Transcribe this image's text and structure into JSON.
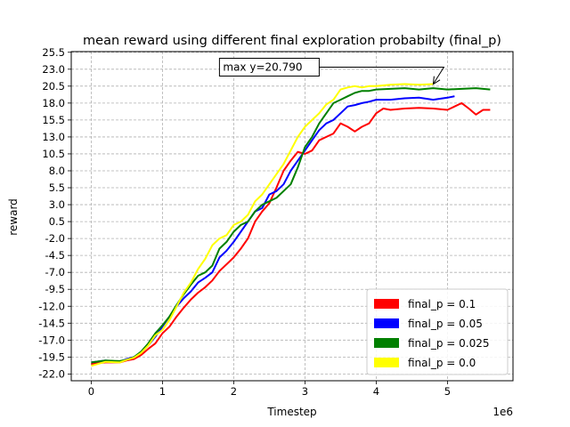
{
  "chart_data": {
    "type": "line",
    "title": "mean reward using different final exploration probabilty (final_p)",
    "xlabel": "Timestep",
    "ylabel": "reward",
    "x_offset_label": "1e6",
    "xlim": [
      -0.28,
      5.92
    ],
    "ylim": [
      -23.0,
      25.6
    ],
    "xticks": [
      0,
      1,
      2,
      3,
      4,
      5
    ],
    "xtick_labels": [
      "0",
      "1",
      "2",
      "3",
      "4",
      "5"
    ],
    "yticks": [
      -22.0,
      -19.5,
      -17.0,
      -14.5,
      -12.0,
      -9.5,
      -7.0,
      -4.5,
      -2.0,
      0.5,
      3.0,
      5.5,
      8.0,
      10.5,
      13.0,
      15.5,
      18.0,
      20.5,
      23.0,
      25.5
    ],
    "ytick_labels": [
      "-22.0",
      "-19.5",
      "-17.0",
      "-14.5",
      "-12.0",
      "-9.5",
      "-7.0",
      "-4.5",
      "-2.0",
      "0.5",
      "3.0",
      "5.5",
      "8.0",
      "10.5",
      "13.0",
      "15.5",
      "18.0",
      "20.5",
      "23.0",
      "25.5"
    ],
    "grid": true,
    "legend_position": "lower-right",
    "annotation": {
      "text": "max y=20.790",
      "text_xy": [
        1.8,
        23.3
      ],
      "point_xy": [
        4.8,
        20.79
      ]
    },
    "series": [
      {
        "name": "final_p = 0.1",
        "color": "#ff0000",
        "x": [
          0.0,
          0.2,
          0.4,
          0.5,
          0.6,
          0.7,
          0.8,
          0.9,
          1.0,
          1.1,
          1.2,
          1.3,
          1.4,
          1.5,
          1.6,
          1.7,
          1.8,
          1.9,
          2.0,
          2.1,
          2.2,
          2.3,
          2.4,
          2.5,
          2.6,
          2.7,
          2.8,
          2.9,
          3.0,
          3.1,
          3.2,
          3.3,
          3.4,
          3.5,
          3.6,
          3.7,
          3.8,
          3.9,
          4.0,
          4.1,
          4.2,
          4.4,
          4.6,
          4.8,
          5.0,
          5.1,
          5.2,
          5.3,
          5.4,
          5.5,
          5.6
        ],
        "y": [
          -20.5,
          -20.3,
          -20.3,
          -20.0,
          -19.8,
          -19.2,
          -18.3,
          -17.5,
          -16.0,
          -15.0,
          -13.5,
          -12.2,
          -11.0,
          -10.0,
          -9.2,
          -8.2,
          -6.8,
          -5.8,
          -4.8,
          -3.5,
          -2.0,
          0.5,
          2.0,
          3.2,
          5.5,
          8.0,
          9.5,
          10.8,
          10.5,
          11.0,
          12.5,
          13.0,
          13.5,
          15.0,
          14.5,
          13.8,
          14.5,
          15.0,
          16.5,
          17.2,
          17.0,
          17.2,
          17.3,
          17.2,
          17.0,
          17.5,
          18.0,
          17.2,
          16.3,
          17.0,
          17.0
        ]
      },
      {
        "name": "final_p = 0.05",
        "color": "#0000ff",
        "x": [
          0.0,
          0.2,
          0.4,
          0.5,
          0.6,
          0.7,
          0.8,
          0.9,
          1.0,
          1.1,
          1.2,
          1.3,
          1.4,
          1.5,
          1.6,
          1.7,
          1.8,
          1.9,
          2.0,
          2.1,
          2.2,
          2.3,
          2.4,
          2.5,
          2.6,
          2.7,
          2.8,
          2.9,
          3.0,
          3.1,
          3.2,
          3.3,
          3.4,
          3.5,
          3.6,
          3.7,
          3.8,
          3.9,
          4.0,
          4.2,
          4.4,
          4.6,
          4.8,
          5.0,
          5.1
        ],
        "y": [
          -20.3,
          -20.0,
          -20.2,
          -19.8,
          -19.5,
          -18.8,
          -17.8,
          -16.5,
          -15.0,
          -13.5,
          -12.0,
          -10.8,
          -9.8,
          -8.5,
          -7.8,
          -7.0,
          -4.8,
          -3.8,
          -2.5,
          -1.0,
          0.5,
          2.0,
          2.5,
          4.5,
          5.0,
          6.0,
          8.0,
          9.5,
          11.0,
          12.5,
          14.0,
          15.0,
          15.5,
          16.5,
          17.5,
          17.7,
          18.0,
          18.2,
          18.5,
          18.5,
          18.7,
          18.8,
          18.5,
          18.8,
          19.0
        ]
      },
      {
        "name": "final_p = 0.025",
        "color": "#008000",
        "x": [
          0.0,
          0.2,
          0.4,
          0.5,
          0.6,
          0.7,
          0.8,
          0.9,
          1.0,
          1.1,
          1.2,
          1.3,
          1.4,
          1.5,
          1.6,
          1.7,
          1.8,
          1.9,
          2.0,
          2.1,
          2.2,
          2.3,
          2.4,
          2.5,
          2.6,
          2.7,
          2.8,
          2.9,
          3.0,
          3.1,
          3.2,
          3.3,
          3.4,
          3.5,
          3.6,
          3.7,
          3.8,
          3.9,
          4.0,
          4.2,
          4.4,
          4.6,
          4.8,
          5.0,
          5.2,
          5.4,
          5.6
        ],
        "y": [
          -20.3,
          -20.0,
          -20.1,
          -19.9,
          -19.5,
          -18.7,
          -17.5,
          -16.0,
          -14.8,
          -13.5,
          -11.8,
          -10.2,
          -8.8,
          -7.5,
          -7.0,
          -6.0,
          -3.5,
          -2.5,
          -1.0,
          0.0,
          0.5,
          2.0,
          3.0,
          3.5,
          4.0,
          5.0,
          6.0,
          8.5,
          11.5,
          13.0,
          15.0,
          16.5,
          18.0,
          18.5,
          19.0,
          19.5,
          19.8,
          19.8,
          20.0,
          20.1,
          20.2,
          20.0,
          20.2,
          20.0,
          20.1,
          20.2,
          20.0
        ]
      },
      {
        "name": "final_p = 0.0",
        "color": "#ffff00",
        "x": [
          0.0,
          0.2,
          0.4,
          0.5,
          0.6,
          0.7,
          0.8,
          0.9,
          1.0,
          1.1,
          1.2,
          1.3,
          1.4,
          1.5,
          1.6,
          1.7,
          1.8,
          1.9,
          2.0,
          2.1,
          2.2,
          2.3,
          2.4,
          2.5,
          2.6,
          2.7,
          2.8,
          2.9,
          3.0,
          3.1,
          3.2,
          3.3,
          3.4,
          3.5,
          3.6,
          3.7,
          3.8,
          3.9,
          4.0,
          4.2,
          4.4,
          4.6,
          4.8
        ],
        "y": [
          -20.8,
          -20.2,
          -20.3,
          -19.9,
          -19.6,
          -18.9,
          -17.8,
          -16.3,
          -15.5,
          -14.0,
          -12.0,
          -10.0,
          -8.5,
          -6.5,
          -5.0,
          -3.0,
          -2.0,
          -1.5,
          0.0,
          0.5,
          1.5,
          3.5,
          4.5,
          6.0,
          7.5,
          9.0,
          11.0,
          13.0,
          14.5,
          15.5,
          16.5,
          17.8,
          18.5,
          20.0,
          20.3,
          20.5,
          20.3,
          20.5,
          20.5,
          20.7,
          20.8,
          20.7,
          20.8
        ]
      }
    ]
  }
}
